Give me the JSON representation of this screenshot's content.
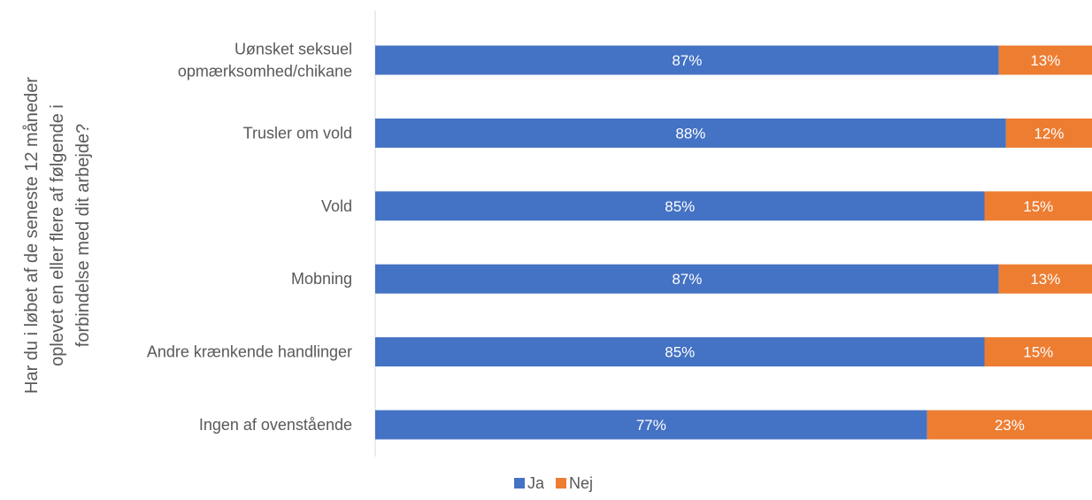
{
  "chart_data": {
    "type": "bar",
    "orientation": "horizontal",
    "stacked": true,
    "ylabel_lines": [
      "Har du i løbet af de seneste 12 måneder",
      "oplevet en eller flere af følgende i",
      "forbindelse med dit arbejde?"
    ],
    "categories": [
      "Uønsket seksuel opmærksomhed/chikane",
      "Trusler om vold",
      "Vold",
      "Mobning",
      "Andre krænkende handlinger",
      "Ingen af ovenstående"
    ],
    "category_lines": [
      [
        "Uønsket seksuel",
        "opmærksomhed/chikane"
      ],
      [
        "Trusler om vold"
      ],
      [
        "Vold"
      ],
      [
        "Mobning"
      ],
      [
        "Andre krænkende handlinger"
      ],
      [
        "Ingen af ovenstående"
      ]
    ],
    "series": [
      {
        "name": "Ja",
        "color": "#4472C4",
        "values": [
          87,
          88,
          85,
          87,
          85,
          77
        ],
        "labels": [
          "87%",
          "88%",
          "85%",
          "87%",
          "85%",
          "77%"
        ]
      },
      {
        "name": "Nej",
        "color": "#ED7D31",
        "values": [
          13,
          12,
          15,
          13,
          15,
          23
        ],
        "labels": [
          "13%",
          "12%",
          "15%",
          "13%",
          "15%",
          "23%"
        ]
      }
    ],
    "xlim": [
      0,
      100
    ],
    "legend_position": "bottom",
    "grid": false
  }
}
